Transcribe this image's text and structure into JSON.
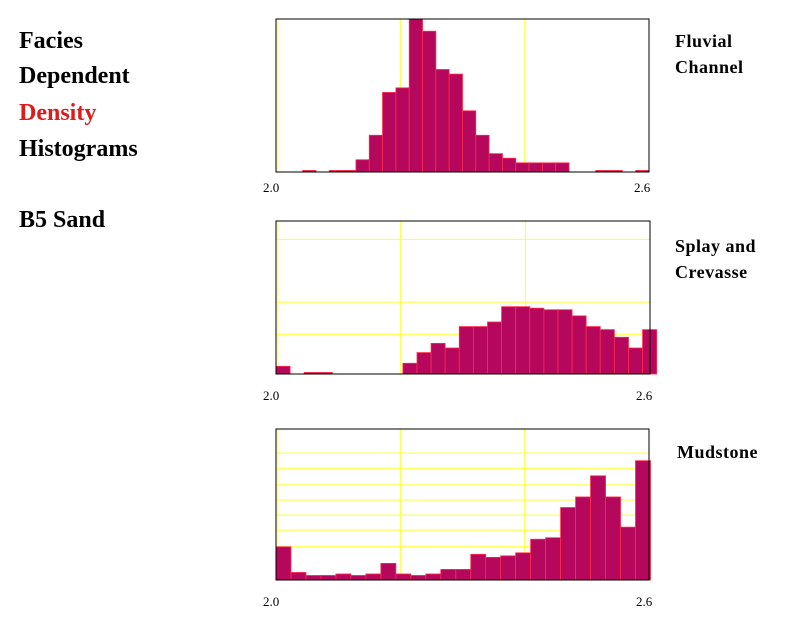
{
  "title": {
    "line1": "Facies",
    "line2": "Dependent",
    "line3": "Density",
    "line4": "Histograms",
    "line3_color": "#e0191b"
  },
  "subtitle": "B5  Sand",
  "colors": {
    "bar_fill": "#b5085d",
    "bar_edge": "#ff2a4a",
    "grid": "#ffff33",
    "frame": "#000000"
  },
  "chart_data": [
    {
      "type": "bar",
      "name_lines": [
        "Fluvial",
        "Channel"
      ],
      "xlim": [
        2.0,
        2.6
      ],
      "ylim": [
        0,
        1
      ],
      "x_tick_labels": [
        "2.0",
        "2.6"
      ],
      "grid_x": [
        2.2,
        2.4
      ],
      "grid_y": [],
      "bin_width": 0.0214,
      "bin_starts": [
        2.0,
        2.0214,
        2.0429,
        2.0643,
        2.0857,
        2.1071,
        2.1286,
        2.15,
        2.1714,
        2.1929,
        2.2143,
        2.2357,
        2.2571,
        2.2786,
        2.3,
        2.3214,
        2.3429,
        2.3643,
        2.3857,
        2.4071,
        2.4286,
        2.45,
        2.4714,
        2.4929,
        2.5143,
        2.5357,
        2.5571,
        2.5786
      ],
      "values": [
        0,
        0,
        0.01,
        0,
        0.01,
        0.01,
        0.08,
        0.24,
        0.52,
        0.55,
        1.0,
        0.92,
        0.67,
        0.64,
        0.4,
        0.24,
        0.12,
        0.09,
        0.06,
        0.06,
        0.06,
        0.06,
        0,
        0,
        0.01,
        0.01,
        0,
        0.01
      ]
    },
    {
      "type": "bar",
      "name_lines": [
        "Splay  and",
        "Crevasse"
      ],
      "xlim": [
        2.0,
        2.6
      ],
      "ylim": [
        0,
        1
      ],
      "x_tick_labels": [
        "2.0",
        "2.6"
      ],
      "grid_x": [
        2.2,
        2.4
      ],
      "grid_y": [
        0.26,
        0.47,
        0.88
      ],
      "bin_width": 0.0226,
      "bin_starts": [
        2.0,
        2.0226,
        2.0452,
        2.0679,
        2.0905,
        2.1131,
        2.1357,
        2.1583,
        2.181,
        2.2036,
        2.2262,
        2.2488,
        2.2714,
        2.294,
        2.3167,
        2.3393,
        2.3619,
        2.3845,
        2.4071,
        2.4298,
        2.4524,
        2.475,
        2.4976,
        2.5202,
        2.5429,
        2.5655,
        2.5881
      ],
      "values": [
        0.05,
        0,
        0.01,
        0.01,
        0,
        0,
        0,
        0,
        0,
        0.07,
        0.14,
        0.2,
        0.17,
        0.31,
        0.31,
        0.34,
        0.44,
        0.44,
        0.43,
        0.42,
        0.42,
        0.38,
        0.31,
        0.29,
        0.24,
        0.17,
        0.29
      ]
    },
    {
      "type": "bar",
      "name_lines": [
        "Mudstone"
      ],
      "xlim": [
        2.0,
        2.6
      ],
      "ylim": [
        0,
        1
      ],
      "x_tick_labels": [
        "2.0",
        "2.6"
      ],
      "grid_x": [
        2.2,
        2.4
      ],
      "grid_y": [
        0.22,
        0.33,
        0.43,
        0.53,
        0.63,
        0.74,
        0.84
      ],
      "bin_width": 0.0241,
      "bin_starts": [
        2.0,
        2.0241,
        2.0482,
        2.0723,
        2.0964,
        2.1205,
        2.1446,
        2.1687,
        2.1928,
        2.2169,
        2.241,
        2.2651,
        2.2892,
        2.3133,
        2.3373,
        2.3614,
        2.3855,
        2.4096,
        2.4337,
        2.4578,
        2.4819,
        2.506,
        2.5301,
        2.5542,
        2.5783
      ],
      "values": [
        0.22,
        0.05,
        0.03,
        0.03,
        0.04,
        0.03,
        0.04,
        0.11,
        0.04,
        0.03,
        0.04,
        0.07,
        0.07,
        0.17,
        0.15,
        0.16,
        0.18,
        0.27,
        0.28,
        0.48,
        0.55,
        0.69,
        0.55,
        0.35,
        0.79
      ]
    }
  ]
}
